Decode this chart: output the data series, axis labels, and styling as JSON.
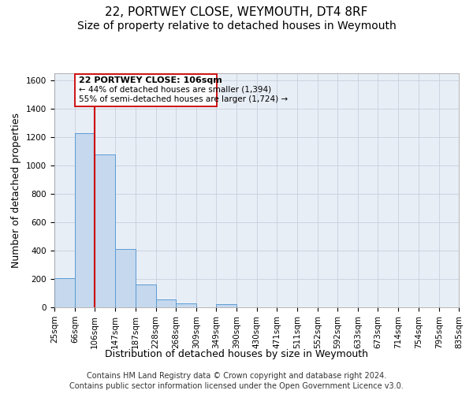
{
  "title": "22, PORTWEY CLOSE, WEYMOUTH, DT4 8RF",
  "subtitle": "Size of property relative to detached houses in Weymouth",
  "xlabel": "Distribution of detached houses by size in Weymouth",
  "ylabel": "Number of detached properties",
  "footer_line1": "Contains HM Land Registry data © Crown copyright and database right 2024.",
  "footer_line2": "Contains public sector information licensed under the Open Government Licence v3.0.",
  "annotation_title": "22 PORTWEY CLOSE: 106sqm",
  "annotation_line1": "← 44% of detached houses are smaller (1,394)",
  "annotation_line2": "55% of semi-detached houses are larger (1,724) →",
  "bin_edges": [
    25,
    66,
    106,
    147,
    187,
    228,
    268,
    309,
    349,
    390,
    430,
    471,
    511,
    552,
    592,
    633,
    673,
    714,
    754,
    795,
    835
  ],
  "bin_counts": [
    207,
    1228,
    1075,
    410,
    160,
    55,
    25,
    0,
    20,
    0,
    0,
    0,
    0,
    0,
    0,
    0,
    0,
    0,
    0,
    0
  ],
  "bar_color": "#c5d8ed",
  "bar_edge_color": "#5b9bd5",
  "property_size": 106,
  "red_line_color": "#cc0000",
  "annotation_box_edge": "#cc0000",
  "ylim": [
    0,
    1650
  ],
  "yticks": [
    0,
    200,
    400,
    600,
    800,
    1000,
    1200,
    1400,
    1600
  ],
  "grid_color": "#c8d0dc",
  "bg_color": "#e8eef6",
  "fig_bg_color": "#ffffff",
  "title_fontsize": 11,
  "subtitle_fontsize": 10,
  "axis_label_fontsize": 9,
  "tick_fontsize": 7.5,
  "footer_fontsize": 7,
  "ann_title_fontsize": 8,
  "ann_text_fontsize": 7.5
}
